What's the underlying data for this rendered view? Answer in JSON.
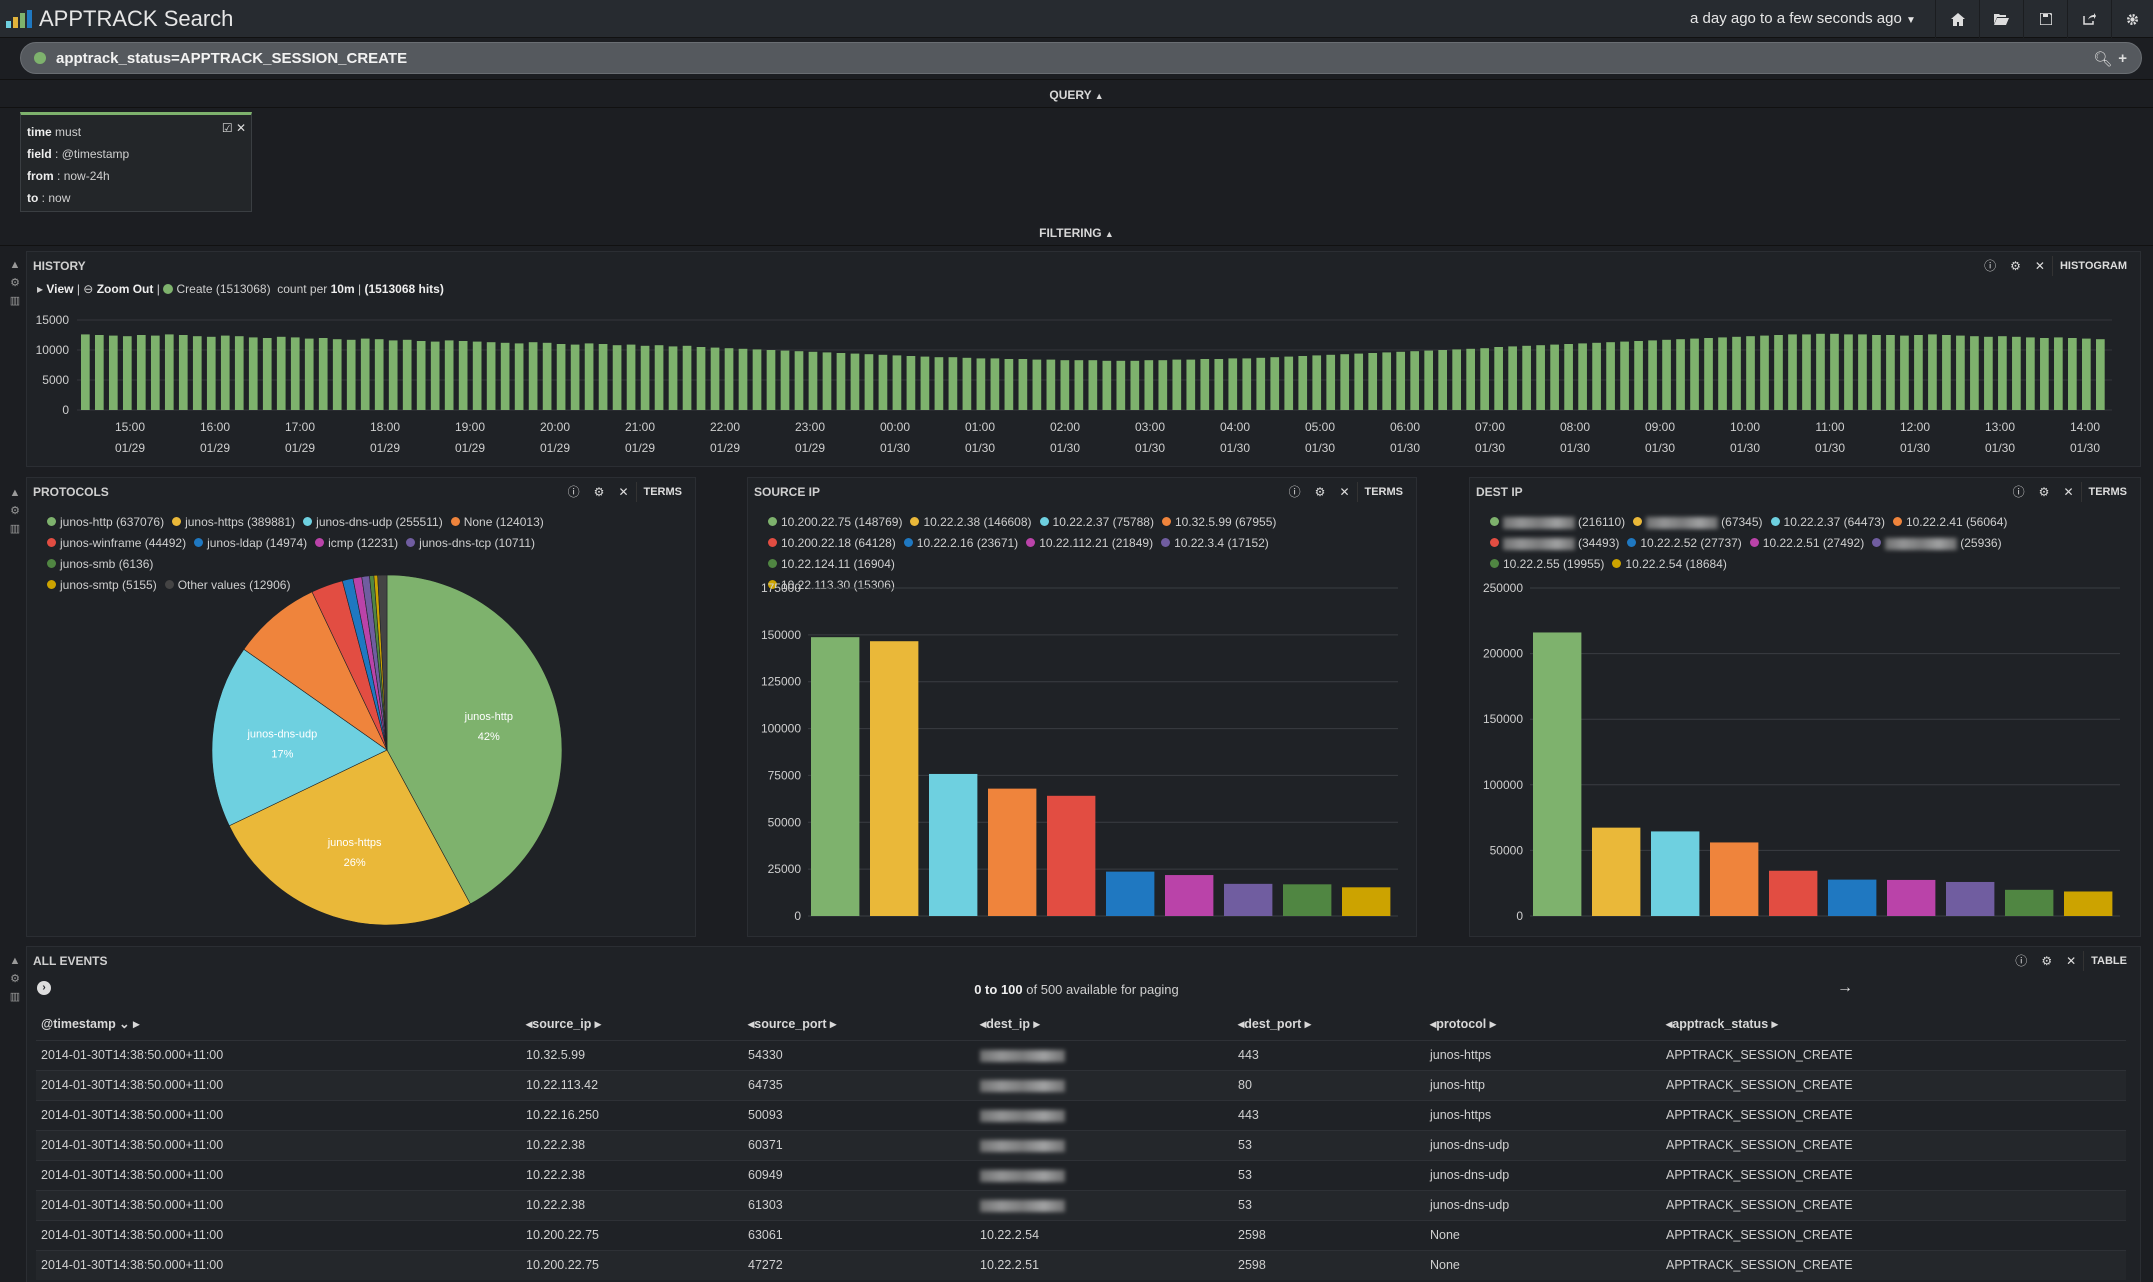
{
  "app": {
    "title": "APPTRACK Search",
    "time_range": "a day ago to a few seconds ago"
  },
  "toolbar": {
    "icons": [
      "home-icon",
      "folder-open-icon",
      "save-icon",
      "share-icon",
      "gear-icon"
    ]
  },
  "query": {
    "text": "apptrack_status=APPTRACK_SESSION_CREATE",
    "section_label": "QUERY"
  },
  "filter": {
    "section_label": "FILTERING",
    "time_label": "time",
    "must": "must",
    "field_label": "field",
    "field_value": "@timestamp",
    "from_label": "from",
    "from_value": "now-24h",
    "to_label": "to",
    "to_value": "now"
  },
  "history": {
    "title": "HISTORY",
    "type_label": "HISTOGRAM",
    "view": "View",
    "zoom_out": "Zoom Out",
    "series_label": "Create (1513068)",
    "count_per": "count per",
    "interval": "10m",
    "hits": "(1513068 hits)",
    "color": "#7eb26d"
  },
  "protocols": {
    "title": "PROTOCOLS",
    "type_label": "TERMS",
    "legend": [
      {
        "label": "junos-http (637076)",
        "color": "#7eb26d"
      },
      {
        "label": "junos-https (389881)",
        "color": "#eab839"
      },
      {
        "label": "junos-dns-udp (255511)",
        "color": "#6ed0e0"
      },
      {
        "label": "None (124013)",
        "color": "#ef843c"
      },
      {
        "label": "junos-winframe (44492)",
        "color": "#e24d42"
      },
      {
        "label": "junos-ldap (14974)",
        "color": "#1f78c1"
      },
      {
        "label": "icmp (12231)",
        "color": "#ba43a9"
      },
      {
        "label": "junos-dns-tcp (10711)",
        "color": "#705da0"
      },
      {
        "label": "junos-smb (6136)",
        "color": "#508642"
      },
      {
        "label": "junos-smtp (5155)",
        "color": "#cca300"
      },
      {
        "label": "Other values (12906)",
        "color": "#444444"
      }
    ],
    "slice_labels": [
      {
        "name": "junos-http",
        "pct": "42%"
      },
      {
        "name": "junos-https",
        "pct": "26%"
      },
      {
        "name": "junos-dns-udp",
        "pct": "17%"
      }
    ]
  },
  "chart_data": [
    {
      "type": "bar",
      "title": "HISTORY",
      "yticks": [
        "15000",
        "10000",
        "5000",
        "0"
      ],
      "ylim": [
        0,
        15000
      ],
      "xticks": [
        {
          "t": "15:00",
          "d": "01/29"
        },
        {
          "t": "16:00",
          "d": "01/29"
        },
        {
          "t": "17:00",
          "d": "01/29"
        },
        {
          "t": "18:00",
          "d": "01/29"
        },
        {
          "t": "19:00",
          "d": "01/29"
        },
        {
          "t": "20:00",
          "d": "01/29"
        },
        {
          "t": "21:00",
          "d": "01/29"
        },
        {
          "t": "22:00",
          "d": "01/29"
        },
        {
          "t": "23:00",
          "d": "01/29"
        },
        {
          "t": "00:00",
          "d": "01/30"
        },
        {
          "t": "01:00",
          "d": "01/30"
        },
        {
          "t": "02:00",
          "d": "01/30"
        },
        {
          "t": "03:00",
          "d": "01/30"
        },
        {
          "t": "04:00",
          "d": "01/30"
        },
        {
          "t": "05:00",
          "d": "01/30"
        },
        {
          "t": "06:00",
          "d": "01/30"
        },
        {
          "t": "07:00",
          "d": "01/30"
        },
        {
          "t": "08:00",
          "d": "01/30"
        },
        {
          "t": "09:00",
          "d": "01/30"
        },
        {
          "t": "10:00",
          "d": "01/30"
        },
        {
          "t": "11:00",
          "d": "01/30"
        },
        {
          "t": "12:00",
          "d": "01/30"
        },
        {
          "t": "13:00",
          "d": "01/30"
        },
        {
          "t": "14:00",
          "d": "01/30"
        }
      ],
      "values": [
        12600,
        12500,
        12400,
        12300,
        12500,
        12400,
        12600,
        12500,
        12300,
        12200,
        12400,
        12300,
        12100,
        12000,
        12200,
        12100,
        11900,
        12000,
        11800,
        11700,
        11900,
        11800,
        11600,
        11700,
        11500,
        11400,
        11600,
        11500,
        11400,
        11300,
        11200,
        11100,
        11300,
        11200,
        11000,
        10900,
        11100,
        11000,
        10800,
        10900,
        10700,
        10800,
        10600,
        10700,
        10500,
        10400,
        10300,
        10200,
        10100,
        10000,
        9900,
        9800,
        9700,
        9600,
        9500,
        9400,
        9300,
        9200,
        9100,
        9000,
        8900,
        8800,
        8800,
        8700,
        8600,
        8600,
        8500,
        8500,
        8400,
        8400,
        8300,
        8300,
        8300,
        8200,
        8200,
        8200,
        8300,
        8300,
        8400,
        8400,
        8500,
        8500,
        8600,
        8600,
        8700,
        8800,
        8900,
        9000,
        9100,
        9200,
        9300,
        9400,
        9500,
        9600,
        9700,
        9800,
        9900,
        10000,
        10100,
        10200,
        10300,
        10500,
        10600,
        10700,
        10800,
        10900,
        11000,
        11100,
        11200,
        11300,
        11400,
        11500,
        11600,
        11700,
        11800,
        11900,
        12000,
        12100,
        12200,
        12300,
        12400,
        12500,
        12600,
        12600,
        12700,
        12700,
        12600,
        12600,
        12500,
        12500,
        12400,
        12500,
        12600,
        12500,
        12400,
        12300,
        12200,
        12300,
        12200,
        12100,
        12000,
        12100,
        12000,
        11900,
        11800
      ]
    },
    {
      "type": "pie",
      "title": "PROTOCOLS",
      "categories": [
        "junos-http",
        "junos-https",
        "junos-dns-udp",
        "None",
        "junos-winframe",
        "junos-ldap",
        "icmp",
        "junos-dns-tcp",
        "junos-smb",
        "junos-smtp",
        "Other values"
      ],
      "values": [
        637076,
        389881,
        255511,
        124013,
        44492,
        14974,
        12231,
        10711,
        6136,
        5155,
        12906
      ]
    },
    {
      "type": "bar",
      "title": "SOURCE IP",
      "yticks": [
        "175000",
        "150000",
        "125000",
        "100000",
        "75000",
        "50000",
        "25000",
        "0"
      ],
      "ylim": [
        0,
        175000
      ],
      "categories": [
        "10.200.22.75",
        "10.22.2.38",
        "10.22.2.37",
        "10.32.5.99",
        "10.200.22.18",
        "10.22.2.16",
        "10.22.112.21",
        "10.22.3.4",
        "10.22.124.11",
        "10.22.113.30"
      ],
      "values": [
        148769,
        146608,
        75788,
        67955,
        64128,
        23671,
        21849,
        17152,
        16904,
        15306
      ]
    },
    {
      "type": "bar",
      "title": "DEST IP",
      "yticks": [
        "250000",
        "200000",
        "150000",
        "100000",
        "50000",
        "0"
      ],
      "ylim": [
        0,
        250000
      ],
      "categories": [
        "",
        "",
        "10.22.2.37",
        "10.22.2.41",
        "",
        "10.22.2.52",
        "10.22.2.51",
        "",
        "10.22.2.55",
        "10.22.2.54"
      ],
      "values": [
        216110,
        67345,
        64473,
        56064,
        34493,
        27737,
        27492,
        25936,
        19955,
        18684
      ]
    }
  ],
  "source_ip": {
    "title": "SOURCE IP",
    "type_label": "TERMS",
    "legend": [
      {
        "label": "10.200.22.75 (148769)",
        "color": "#7eb26d",
        "blur": false
      },
      {
        "label": "10.22.2.38 (146608)",
        "color": "#eab839",
        "blur": false
      },
      {
        "label": "10.22.2.37 (75788)",
        "color": "#6ed0e0",
        "blur": false
      },
      {
        "label": "10.32.5.99 (67955)",
        "color": "#ef843c",
        "blur": false
      },
      {
        "label": "10.200.22.18 (64128)",
        "color": "#e24d42",
        "blur": false
      },
      {
        "label": "10.22.2.16 (23671)",
        "color": "#1f78c1",
        "blur": false
      },
      {
        "label": "10.22.112.21 (21849)",
        "color": "#ba43a9",
        "blur": false
      },
      {
        "label": "10.22.3.4 (17152)",
        "color": "#705da0",
        "blur": false
      },
      {
        "label": "10.22.124.11 (16904)",
        "color": "#508642",
        "blur": false
      },
      {
        "label": "10.22.113.30 (15306)",
        "color": "#cca300",
        "blur": false
      }
    ]
  },
  "dest_ip": {
    "title": "DEST IP",
    "type_label": "TERMS",
    "legend": [
      {
        "label": "(216110)",
        "color": "#7eb26d",
        "blur": true
      },
      {
        "label": "(67345)",
        "color": "#eab839",
        "blur": true
      },
      {
        "label": "10.22.2.37 (64473)",
        "color": "#6ed0e0",
        "blur": false
      },
      {
        "label": "10.22.2.41 (56064)",
        "color": "#ef843c",
        "blur": false
      },
      {
        "label": "(34493)",
        "color": "#e24d42",
        "blur": true
      },
      {
        "label": "10.22.2.52 (27737)",
        "color": "#1f78c1",
        "blur": false
      },
      {
        "label": "10.22.2.51 (27492)",
        "color": "#ba43a9",
        "blur": false
      },
      {
        "label": "(25936)",
        "color": "#705da0",
        "blur": true
      },
      {
        "label": "10.22.2.55 (19955)",
        "color": "#508642",
        "blur": false
      },
      {
        "label": "10.22.2.54 (18684)",
        "color": "#cca300",
        "blur": false
      }
    ]
  },
  "events": {
    "title": "ALL EVENTS",
    "type_label": "TABLE",
    "paging_range": "0 to 100",
    "paging_rest": "of 500 available for paging",
    "columns": [
      "@timestamp",
      "source_ip",
      "source_port",
      "dest_ip",
      "dest_port",
      "protocol",
      "apptrack_status"
    ],
    "rows": [
      {
        "ts": "2014-01-30T14:38:50.000+11:00",
        "sip": "10.32.5.99",
        "sport": "54330",
        "dip": "",
        "dblur": true,
        "dport": "443",
        "proto": "junos-https",
        "status": "APPTRACK_SESSION_CREATE"
      },
      {
        "ts": "2014-01-30T14:38:50.000+11:00",
        "sip": "10.22.113.42",
        "sport": "64735",
        "dip": "",
        "dblur": true,
        "dport": "80",
        "proto": "junos-http",
        "status": "APPTRACK_SESSION_CREATE"
      },
      {
        "ts": "2014-01-30T14:38:50.000+11:00",
        "sip": "10.22.16.250",
        "sport": "50093",
        "dip": "",
        "dblur": true,
        "dport": "443",
        "proto": "junos-https",
        "status": "APPTRACK_SESSION_CREATE"
      },
      {
        "ts": "2014-01-30T14:38:50.000+11:00",
        "sip": "10.22.2.38",
        "sport": "60371",
        "dip": "",
        "dblur": true,
        "dport": "53",
        "proto": "junos-dns-udp",
        "status": "APPTRACK_SESSION_CREATE"
      },
      {
        "ts": "2014-01-30T14:38:50.000+11:00",
        "sip": "10.22.2.38",
        "sport": "60949",
        "dip": "",
        "dblur": true,
        "dport": "53",
        "proto": "junos-dns-udp",
        "status": "APPTRACK_SESSION_CREATE"
      },
      {
        "ts": "2014-01-30T14:38:50.000+11:00",
        "sip": "10.22.2.38",
        "sport": "61303",
        "dip": "",
        "dblur": true,
        "dport": "53",
        "proto": "junos-dns-udp",
        "status": "APPTRACK_SESSION_CREATE"
      },
      {
        "ts": "2014-01-30T14:38:50.000+11:00",
        "sip": "10.200.22.75",
        "sport": "63061",
        "dip": "10.22.2.54",
        "dblur": false,
        "dport": "2598",
        "proto": "None",
        "status": "APPTRACK_SESSION_CREATE"
      },
      {
        "ts": "2014-01-30T14:38:50.000+11:00",
        "sip": "10.200.22.75",
        "sport": "47272",
        "dip": "10.22.2.51",
        "dblur": false,
        "dport": "2598",
        "proto": "None",
        "status": "APPTRACK_SESSION_CREATE"
      }
    ]
  }
}
